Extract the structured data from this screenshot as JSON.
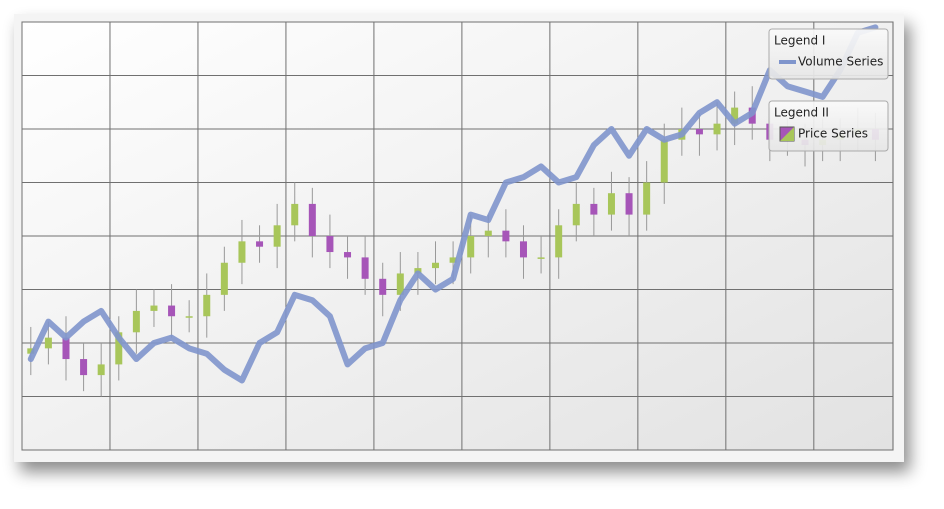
{
  "chart_data": {
    "type": "candlestick",
    "legend_titles": [
      "Legend I",
      "Legend II"
    ],
    "x": [
      1,
      3,
      5,
      7,
      9,
      11,
      13,
      15,
      17,
      19,
      21,
      23,
      25,
      27,
      29,
      31,
      33,
      35,
      37,
      39,
      41,
      43,
      45,
      47,
      49,
      51,
      53,
      55,
      57,
      59,
      61,
      63,
      65,
      67,
      69,
      71,
      73,
      75,
      77,
      79,
      81,
      83,
      85,
      87,
      89,
      91,
      93,
      95,
      97
    ],
    "xlim": [
      0,
      99
    ],
    "xticks": [
      0,
      10,
      20,
      30,
      40,
      50,
      60,
      70,
      80,
      90
    ],
    "ylim": [
      0,
      8
    ],
    "yticks": [
      0,
      1,
      2,
      3,
      4,
      5,
      6,
      7,
      8
    ],
    "grid": true,
    "up_color": "#a8c65a",
    "down_color": "#a655b8",
    "price": {
      "name": "Price Series",
      "open": [
        1.8,
        1.9,
        2.1,
        1.7,
        1.4,
        1.6,
        2.2,
        2.6,
        2.7,
        2.5,
        2.5,
        2.9,
        3.5,
        3.9,
        3.8,
        4.2,
        4.6,
        4.0,
        3.7,
        3.6,
        3.2,
        2.9,
        3.3,
        3.4,
        3.5,
        3.6,
        4.0,
        4.1,
        3.9,
        3.6,
        3.6,
        4.2,
        4.6,
        4.4,
        4.8,
        4.4,
        5.0,
        5.8,
        6.0,
        5.9,
        6.1,
        6.4,
        6.1,
        5.8,
        5.8,
        5.7,
        5.8,
        5.9,
        6.0
      ],
      "high": [
        2.3,
        2.4,
        2.5,
        2.0,
        2.0,
        2.5,
        3.0,
        3.0,
        3.1,
        2.8,
        3.3,
        3.8,
        4.3,
        4.2,
        4.6,
        5.0,
        4.9,
        4.4,
        4.0,
        4.0,
        3.5,
        3.7,
        3.7,
        3.9,
        3.9,
        4.4,
        4.4,
        4.5,
        4.2,
        4.0,
        4.5,
        5.0,
        4.9,
        5.2,
        5.1,
        5.4,
        6.1,
        6.4,
        6.3,
        6.5,
        6.7,
        6.8,
        6.4,
        6.2,
        6.1,
        6.2,
        6.2,
        6.4,
        6.3
      ],
      "low": [
        1.4,
        1.6,
        1.3,
        1.1,
        1.0,
        1.3,
        1.8,
        2.3,
        2.1,
        2.2,
        2.1,
        2.6,
        3.1,
        3.5,
        3.4,
        3.9,
        3.6,
        3.4,
        3.2,
        2.9,
        2.5,
        2.6,
        2.9,
        3.1,
        3.1,
        3.3,
        3.6,
        3.6,
        3.2,
        3.3,
        3.2,
        3.9,
        4.0,
        4.1,
        4.0,
        4.1,
        4.6,
        5.5,
        5.5,
        5.6,
        5.7,
        5.8,
        5.4,
        5.5,
        5.3,
        5.4,
        5.4,
        5.6,
        5.4
      ],
      "close": [
        1.9,
        2.1,
        1.7,
        1.4,
        1.6,
        2.2,
        2.6,
        2.7,
        2.5,
        2.5,
        2.9,
        3.5,
        3.9,
        3.8,
        4.2,
        4.6,
        4.0,
        3.7,
        3.6,
        3.2,
        2.9,
        3.3,
        3.4,
        3.5,
        3.6,
        4.0,
        4.1,
        3.9,
        3.6,
        3.6,
        4.2,
        4.6,
        4.4,
        4.8,
        4.4,
        5.0,
        5.8,
        6.0,
        5.9,
        6.1,
        6.4,
        6.1,
        5.8,
        5.8,
        5.7,
        5.8,
        5.9,
        6.0,
        5.8
      ]
    },
    "series": [
      {
        "name": "Volume Series",
        "color": "#7f95cc",
        "values": [
          1.7,
          2.4,
          2.1,
          2.4,
          2.6,
          2.1,
          1.7,
          2.0,
          2.1,
          1.9,
          1.8,
          1.5,
          1.3,
          2.0,
          2.2,
          2.9,
          2.8,
          2.5,
          1.6,
          1.9,
          2.0,
          2.8,
          3.3,
          3.0,
          3.2,
          4.4,
          4.3,
          5.0,
          5.1,
          5.3,
          5.0,
          5.1,
          5.7,
          6.0,
          5.5,
          6.0,
          5.8,
          5.9,
          6.3,
          6.5,
          6.1,
          6.3,
          7.1,
          6.8,
          6.7,
          6.6,
          7.1,
          7.8,
          7.9
        ]
      }
    ]
  }
}
